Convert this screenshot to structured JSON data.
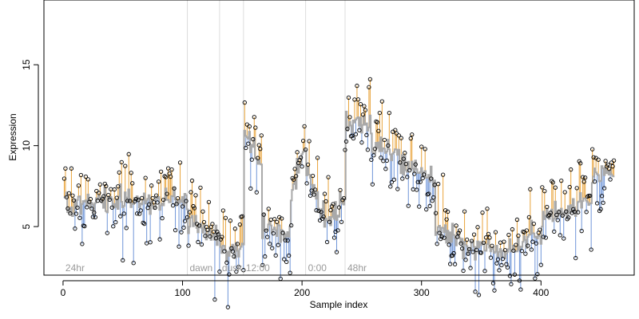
{
  "chart_data": {
    "type": "scatter",
    "title": "",
    "xlabel": "Sample index",
    "ylabel": "Expression",
    "xlim": [
      -16,
      478
    ],
    "ylim": [
      2.0,
      19.0
    ],
    "xticks": [
      0,
      100,
      200,
      300,
      400
    ],
    "yticks": [
      5,
      10,
      15
    ],
    "grid": false,
    "legend": "none",
    "colors": {
      "above_fit": "#e8a33a",
      "below_fit": "#6f95d8",
      "fit_line": "#a9a9a9",
      "points": "#000000",
      "phase_line": "#dddddd",
      "phase_label": "#9a9a9a"
    },
    "phase_boundaries": [
      104,
      131,
      151,
      203,
      236
    ],
    "phase_labels": [
      {
        "x": 2,
        "label": "24hr"
      },
      {
        "x": 106,
        "label": "dawn"
      },
      {
        "x": 133,
        "label": "dusk"
      },
      {
        "x": 153,
        "label": "12:00"
      },
      {
        "x": 205,
        "label": "0:00"
      },
      {
        "x": 238,
        "label": "48hr"
      }
    ],
    "fit_segments": [
      {
        "x": [
          1,
          104
        ],
        "y": [
          6.3,
          6.8
        ]
      },
      {
        "x": [
          104,
          131
        ],
        "y": [
          5.2,
          4.3
        ]
      },
      {
        "x": [
          131,
          151
        ],
        "y": [
          3.4,
          3.6
        ]
      },
      {
        "x": [
          151,
          166
        ],
        "y": [
          11.2,
          8.5
        ]
      },
      {
        "x": [
          166,
          190
        ],
        "y": [
          5.0,
          4.5
        ]
      },
      {
        "x": [
          190,
          203
        ],
        "y": [
          6.5,
          10.0
        ]
      },
      {
        "x": [
          203,
          218
        ],
        "y": [
          8.5,
          5.5
        ]
      },
      {
        "x": [
          218,
          236
        ],
        "y": [
          5.2,
          6.5
        ]
      },
      {
        "x": [
          236,
          258
        ],
        "y": [
          11.3,
          11.2
        ]
      },
      {
        "x": [
          258,
          281
        ],
        "y": [
          10.0,
          9.6
        ]
      },
      {
        "x": [
          281,
          311
        ],
        "y": [
          8.9,
          8.2
        ]
      },
      {
        "x": [
          311,
          345
        ],
        "y": [
          5.0,
          3.7
        ]
      },
      {
        "x": [
          345,
          375
        ],
        "y": [
          3.8,
          3.6
        ]
      },
      {
        "x": [
          375,
          400
        ],
        "y": [
          3.6,
          4.6
        ]
      },
      {
        "x": [
          400,
          425
        ],
        "y": [
          5.5,
          6.2
        ]
      },
      {
        "x": [
          425,
          442
        ],
        "y": [
          6.2,
          6.8
        ]
      },
      {
        "x": [
          442,
          461
        ],
        "y": [
          8.2,
          8.4
        ]
      }
    ],
    "fit_noise": 0.35,
    "point_noise": 1.3,
    "seed": 7
  }
}
